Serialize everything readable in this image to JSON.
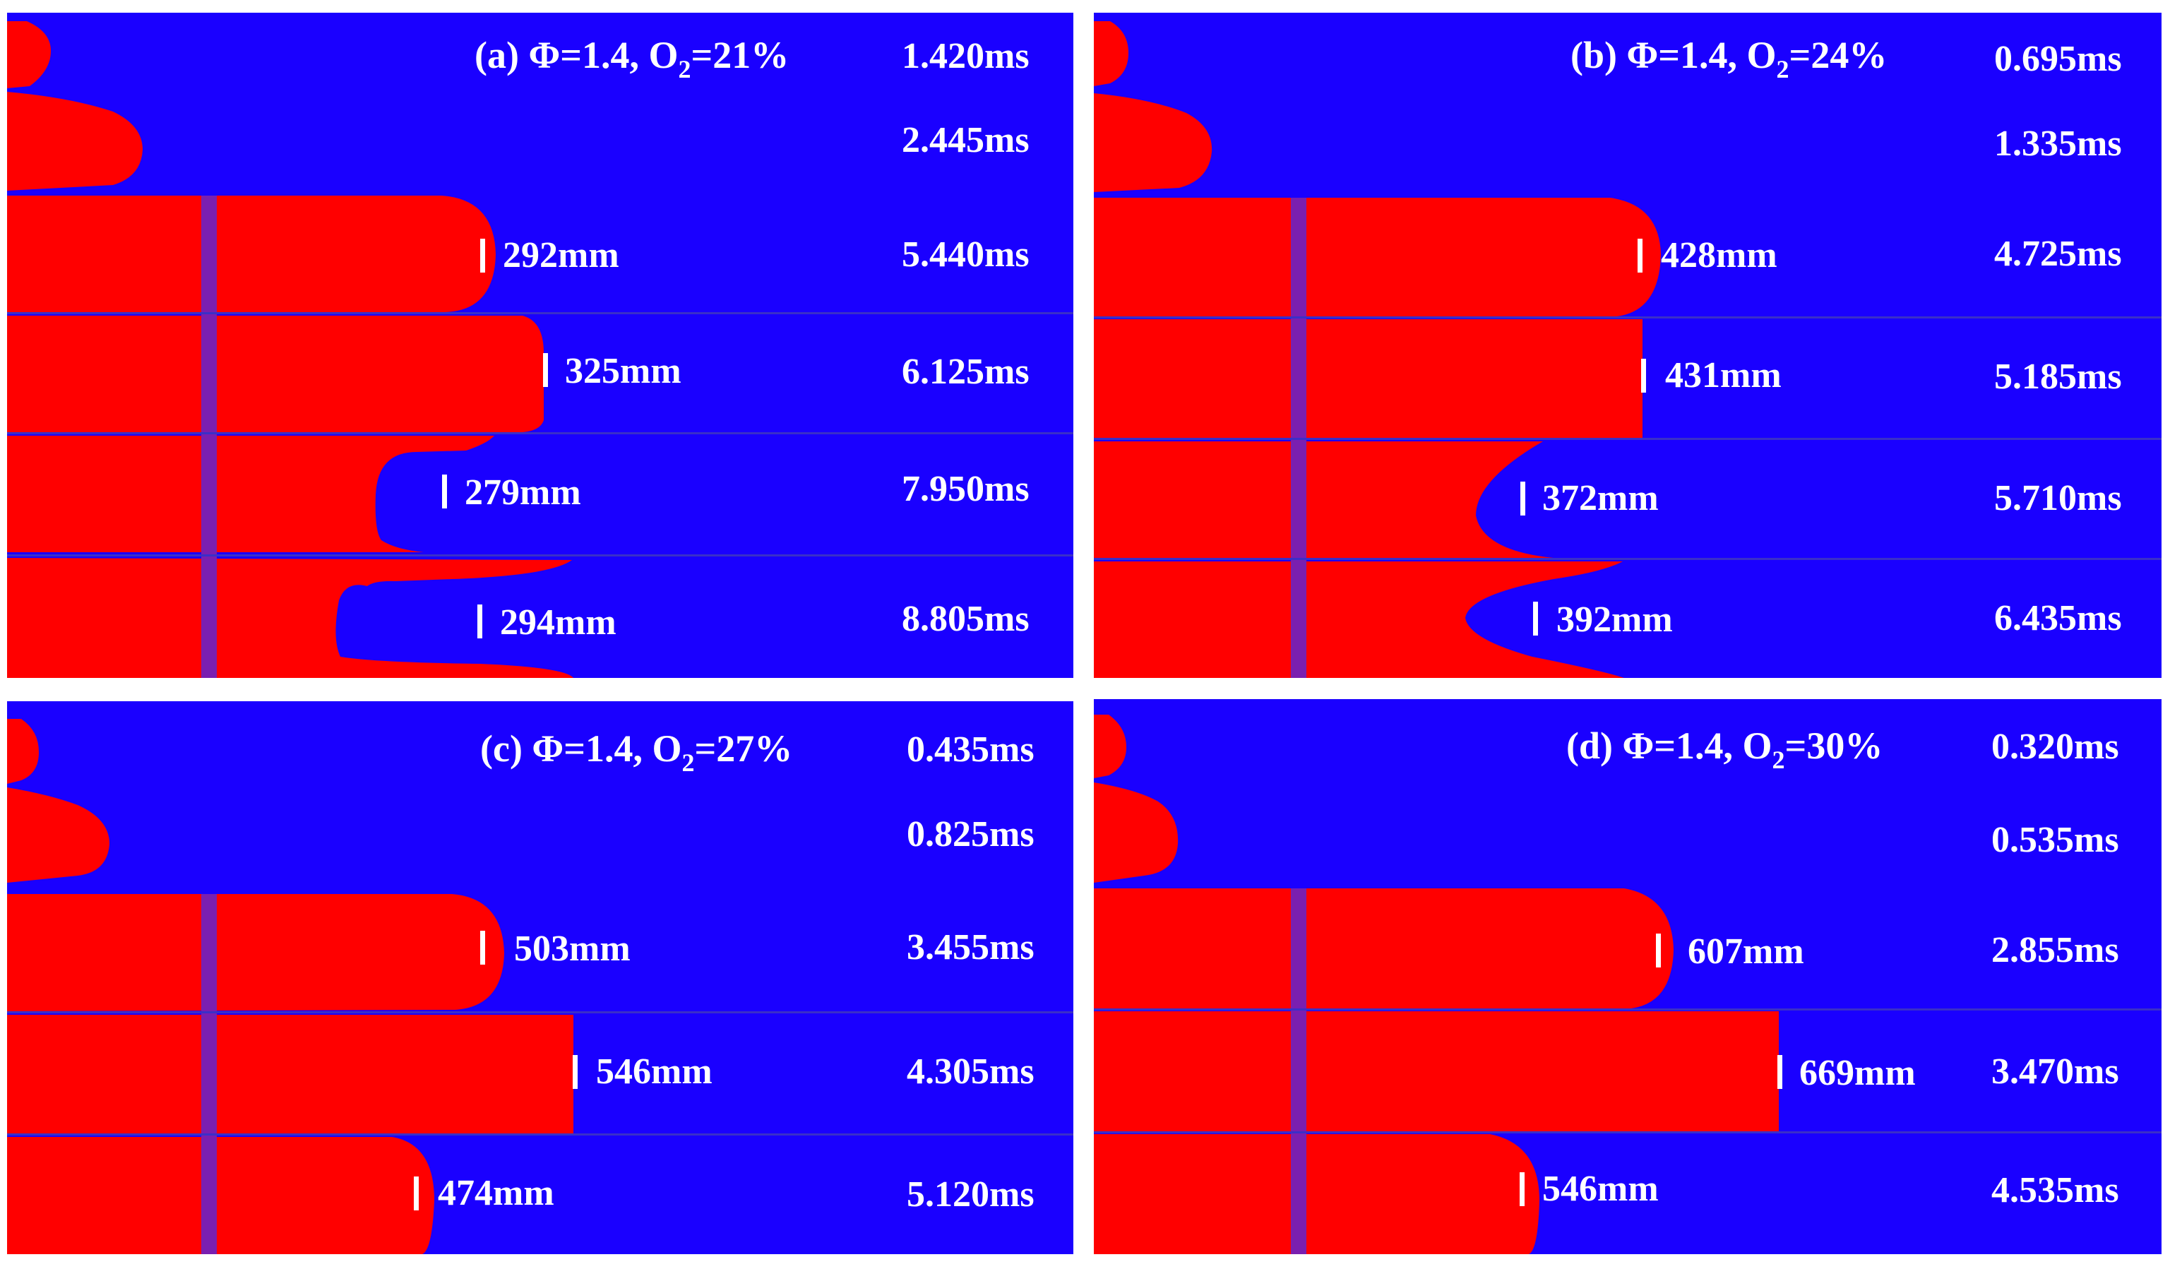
{
  "colors": {
    "background": "#1a00ff",
    "flame": "#ff0000",
    "stripe": "#7a1fb0",
    "text": "#ffffff"
  },
  "panels": [
    {
      "title": {
        "prefix": "(a) Φ=1.4,  O",
        "sub": "2",
        "suffix": "=21%"
      },
      "rows": [
        {
          "time": "1.420ms",
          "distance": ""
        },
        {
          "time": "2.445ms",
          "distance": ""
        },
        {
          "time": "5.440ms",
          "distance": "292mm"
        },
        {
          "time": "6.125ms",
          "distance": "325mm"
        },
        {
          "time": "7.950ms",
          "distance": "279mm"
        },
        {
          "time": "8.805ms",
          "distance": "294mm"
        }
      ]
    },
    {
      "title": {
        "prefix": "(b) Φ=1.4, O",
        "sub": "2",
        "suffix": "=24%"
      },
      "rows": [
        {
          "time": "0.695ms",
          "distance": ""
        },
        {
          "time": "1.335ms",
          "distance": ""
        },
        {
          "time": "4.725ms",
          "distance": "428mm"
        },
        {
          "time": "5.185ms",
          "distance": "431mm"
        },
        {
          "time": "5.710ms",
          "distance": "372mm"
        },
        {
          "time": "6.435ms",
          "distance": "392mm"
        }
      ]
    },
    {
      "title": {
        "prefix": "(c) Φ=1.4, O",
        "sub": "2",
        "suffix": "=27%"
      },
      "rows": [
        {
          "time": "0.435ms",
          "distance": ""
        },
        {
          "time": "0.825ms",
          "distance": ""
        },
        {
          "time": "3.455ms",
          "distance": "503mm"
        },
        {
          "time": "4.305ms",
          "distance": "546mm"
        },
        {
          "time": "5.120ms",
          "distance": "474mm"
        }
      ]
    },
    {
      "title": {
        "prefix": "(d) Φ=1.4, O",
        "sub": "2",
        "suffix": "=30%"
      },
      "rows": [
        {
          "time": "0.320ms",
          "distance": ""
        },
        {
          "time": "0.535ms",
          "distance": ""
        },
        {
          "time": "2.855ms",
          "distance": "607mm"
        },
        {
          "time": "3.470ms",
          "distance": "669mm"
        },
        {
          "time": "4.535ms",
          "distance": "546mm"
        }
      ]
    }
  ]
}
